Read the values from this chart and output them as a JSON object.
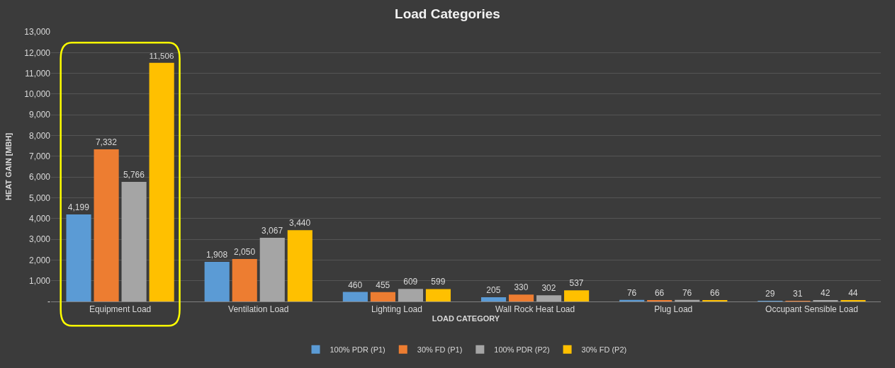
{
  "chart_data": {
    "type": "bar",
    "title": "Load Categories",
    "xlabel": "LOAD CATEGORY",
    "ylabel": "HEAT GAIN [MBH]",
    "categories": [
      "Equipment Load",
      "Ventilation Load",
      "Lighting Load",
      "Wall Rock Heat Load",
      "Plug Load",
      "Occupant Sensible Load"
    ],
    "series": [
      {
        "name": "100% PDR (P1)",
        "color": "#5b9bd5",
        "values": [
          4199,
          1908,
          460,
          205,
          76,
          29
        ],
        "value_labels": [
          "4,199",
          "1,908",
          "460",
          "205",
          "76",
          "29"
        ]
      },
      {
        "name": "30% FD (P1)",
        "color": "#ed7d31",
        "values": [
          7332,
          2050,
          455,
          330,
          66,
          31
        ],
        "value_labels": [
          "7,332",
          "2,050",
          "455",
          "330",
          "66",
          "31"
        ]
      },
      {
        "name": "100% PDR (P2)",
        "color": "#a5a5a5",
        "values": [
          5766,
          3067,
          609,
          302,
          76,
          42
        ],
        "value_labels": [
          "5,766",
          "3,067",
          "609",
          "302",
          "76",
          "42"
        ]
      },
      {
        "name": "30% FD (P2)",
        "color": "#ffc000",
        "values": [
          11506,
          3440,
          599,
          537,
          66,
          44
        ],
        "value_labels": [
          "11,506",
          "3,440",
          "599",
          "537",
          "66",
          "44"
        ]
      }
    ],
    "ylim": [
      0,
      13000
    ],
    "yticks": [
      {
        "value": 0,
        "label": "-"
      },
      {
        "value": 1000,
        "label": "1,000"
      },
      {
        "value": 2000,
        "label": "2,000"
      },
      {
        "value": 3000,
        "label": "3,000"
      },
      {
        "value": 4000,
        "label": "4,000"
      },
      {
        "value": 5000,
        "label": "5,000"
      },
      {
        "value": 6000,
        "label": "6,000"
      },
      {
        "value": 7000,
        "label": "7,000"
      },
      {
        "value": 8000,
        "label": "8,000"
      },
      {
        "value": 9000,
        "label": "9,000"
      },
      {
        "value": 10000,
        "label": "10,000"
      },
      {
        "value": 11000,
        "label": "11,000"
      },
      {
        "value": 12000,
        "label": "12,000"
      },
      {
        "value": 13000,
        "label": "13,000"
      }
    ],
    "grid": "y",
    "legend": "bottom"
  }
}
